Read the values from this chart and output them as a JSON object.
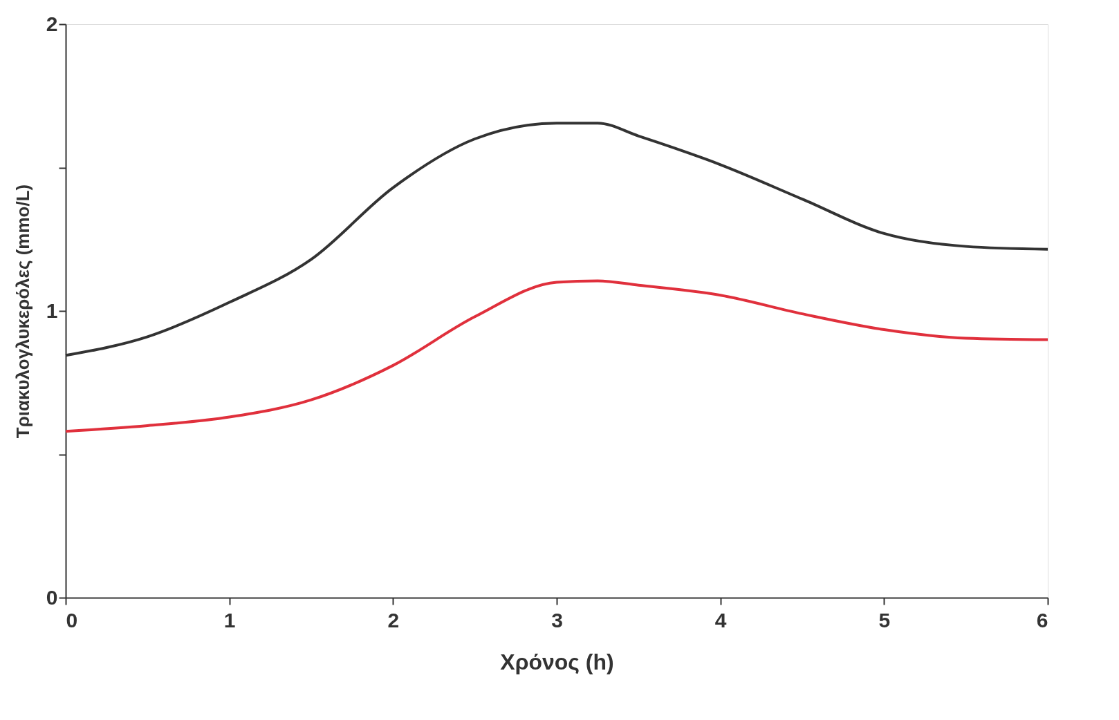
{
  "chart_data": {
    "type": "line",
    "xlabel": "Χρόνος (h)",
    "ylabel": "Τριακυλογλυκερόλες (mmo/L)",
    "x": [
      0,
      0.5,
      1,
      1.5,
      2,
      2.5,
      3,
      3.25,
      3.5,
      4,
      4.5,
      5,
      5.5,
      6
    ],
    "series": [
      {
        "color": "#333333",
        "values": [
          0.845,
          0.91,
          1.03,
          1.18,
          1.43,
          1.6,
          1.655,
          1.655,
          1.61,
          1.51,
          1.39,
          1.27,
          1.225,
          1.215
        ]
      },
      {
        "color": "#e0303c",
        "values": [
          0.58,
          0.6,
          0.63,
          0.69,
          0.81,
          0.98,
          1.1,
          1.105,
          1.09,
          1.055,
          0.99,
          0.935,
          0.905,
          0.9
        ]
      }
    ],
    "xlim": [
      0,
      6
    ],
    "xticks": [
      0,
      1,
      2,
      3,
      4,
      5,
      6
    ],
    "ylim": [
      0,
      2
    ],
    "yticks": [
      0,
      {
        "value": 0.5,
        "label": null
      },
      1,
      {
        "value": 1.5,
        "label": null
      },
      2
    ],
    "grid": false,
    "legend": false,
    "marker": "none",
    "line_style": "solid"
  }
}
